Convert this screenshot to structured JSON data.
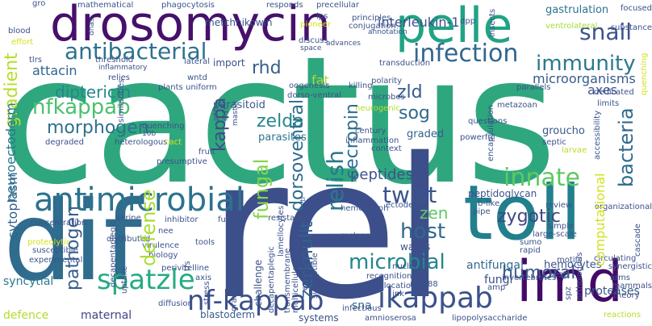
{
  "words": [
    {
      "text": "cactus",
      "color": "#2fa77e"
    },
    {
      "text": "rel",
      "color": "#3c4f8a"
    },
    {
      "text": "dif",
      "color": "#2f6c8e"
    },
    {
      "text": "toll",
      "color": "#22808d"
    },
    {
      "text": "drosomycin",
      "color": "#46106b"
    },
    {
      "text": "pelle",
      "color": "#21a385"
    },
    {
      "text": "imd",
      "color": "#440a68"
    },
    {
      "text": "antimicrobial",
      "color": "#2c728e"
    },
    {
      "text": "antibacterial",
      "color": "#2c728e"
    },
    {
      "text": "immunity",
      "color": "#2a788e"
    },
    {
      "text": "infection",
      "color": "#31668e"
    },
    {
      "text": "snail",
      "color": "#3b528b"
    },
    {
      "text": "innate",
      "color": "#5ec962"
    },
    {
      "text": "spatzle",
      "color": "#25ab82"
    },
    {
      "text": "nf-kappab",
      "color": "#3c4f8a"
    },
    {
      "text": "ikappab",
      "color": "#3b528b"
    },
    {
      "text": "microbial",
      "color": "#24868e"
    },
    {
      "text": "twist",
      "color": "#3a548c"
    },
    {
      "text": "relish",
      "color": "#2a788e"
    },
    {
      "text": "nfkappab",
      "color": "#4ac16d"
    },
    {
      "text": "morphogen",
      "color": "#2d718e"
    },
    {
      "text": "diptericin",
      "color": "#24878e"
    },
    {
      "text": "zelda",
      "color": "#24878e"
    },
    {
      "text": "kappa",
      "color": "#3e4c8a"
    },
    {
      "text": "rhd",
      "color": "#355f8d"
    },
    {
      "text": "zld",
      "color": "#375a8c"
    },
    {
      "text": "sog",
      "color": "#306a8e"
    },
    {
      "text": "humoral",
      "color": "#365c8d"
    },
    {
      "text": "pathogen",
      "color": "#355e8d"
    },
    {
      "text": "host",
      "color": "#31688e"
    },
    {
      "text": "bacteria",
      "color": "#306a8e"
    },
    {
      "text": "fungal",
      "color": "#84d44b"
    },
    {
      "text": "defense",
      "color": "#aadc32"
    },
    {
      "text": "dorsoventral",
      "color": "#2f6c8e"
    },
    {
      "text": "cecropin",
      "color": "#2e6e8e"
    },
    {
      "text": "peptides",
      "color": "#3b528b"
    },
    {
      "text": "zen",
      "color": "#5ec962"
    },
    {
      "text": "zygotic",
      "color": "#404688"
    },
    {
      "text": "interleukin-1",
      "color": "#3e4c8a"
    },
    {
      "text": "gradient",
      "color": "#b5de2b"
    },
    {
      "text": "attacin",
      "color": "#32648e"
    },
    {
      "text": "parasitoid",
      "color": "#38588c"
    },
    {
      "text": "parasites",
      "color": "#2a768e"
    },
    {
      "text": "graded",
      "color": "#355f8d"
    },
    {
      "text": "groucho",
      "color": "#38598c"
    },
    {
      "text": "axes",
      "color": "#3b528b"
    },
    {
      "text": "fat",
      "color": "#a8db34"
    },
    {
      "text": "microorganisms",
      "color": "#365c8d"
    },
    {
      "text": "gastrulation",
      "color": "#2c738e"
    },
    {
      "text": "zerknullt",
      "color": "#34618d"
    },
    {
      "text": "hemocytes",
      "color": "#3b528b"
    },
    {
      "text": "antifungal",
      "color": "#31688e"
    },
    {
      "text": "fungi",
      "color": "#3c4f8a"
    },
    {
      "text": "proteases",
      "color": "#38588c"
    },
    {
      "text": "sna",
      "color": "#306a8e"
    },
    {
      "text": "syncytial",
      "color": "#29798e"
    },
    {
      "text": "defence",
      "color": "#b2dd2d"
    },
    {
      "text": "maternal",
      "color": "#404688"
    },
    {
      "text": "blastoderm",
      "color": "#365c8d"
    },
    {
      "text": "cytoplasm",
      "color": "#34618d"
    },
    {
      "text": "neuroectoderm",
      "color": "#2a768e"
    },
    {
      "text": "computational",
      "color": "#d2e21b"
    },
    {
      "text": "metchnikowin",
      "color": "#3b528b"
    },
    {
      "text": "mathematical",
      "color": "#3b528b"
    },
    {
      "text": "phagocytosis",
      "color": "#3b528b"
    },
    {
      "text": "responds",
      "color": "#3b528b"
    },
    {
      "text": "precellular",
      "color": "#3b528b"
    },
    {
      "text": "conjugation",
      "color": "#3b528b"
    },
    {
      "text": "principles",
      "color": "#3b528b"
    },
    {
      "text": "lps",
      "color": "#3b528b"
    },
    {
      "text": "pioneer",
      "color": "#d8e219"
    },
    {
      "text": "annotation",
      "color": "#3b528b"
    },
    {
      "text": "dpp",
      "color": "#3b528b"
    },
    {
      "text": "insects",
      "color": "#3b528b"
    },
    {
      "text": "ventrolateral",
      "color": "#a5db36"
    },
    {
      "text": "substance",
      "color": "#3b528b"
    },
    {
      "text": "focused",
      "color": "#3b528b"
    },
    {
      "text": "threshold",
      "color": "#3b528b"
    },
    {
      "text": "tlrs",
      "color": "#3b528b"
    },
    {
      "text": "discuss",
      "color": "#3b528b"
    },
    {
      "text": "space",
      "color": "#3b528b"
    },
    {
      "text": "advances",
      "color": "#3b528b"
    },
    {
      "text": "transduction",
      "color": "#3b528b"
    },
    {
      "text": "lateral",
      "color": "#3b528b"
    },
    {
      "text": "import",
      "color": "#3b528b"
    },
    {
      "text": "effort",
      "color": "#d8e219"
    },
    {
      "text": "blood",
      "color": "#3b528b"
    },
    {
      "text": "gro",
      "color": "#3b528b"
    },
    {
      "text": "relies",
      "color": "#3b528b"
    },
    {
      "text": "plants",
      "color": "#3b528b"
    },
    {
      "text": "similarities",
      "color": "#3b528b"
    },
    {
      "text": "uniform",
      "color": "#3b528b"
    },
    {
      "text": "wntd",
      "color": "#3b528b"
    },
    {
      "text": "oogenesis",
      "color": "#3b528b"
    },
    {
      "text": "dorso-ventral",
      "color": "#3b528b"
    },
    {
      "text": "killing",
      "color": "#3b528b"
    },
    {
      "text": "polarity",
      "color": "#3b528b"
    },
    {
      "text": "microbes",
      "color": "#3b528b"
    },
    {
      "text": "neurogenic",
      "color": "#b8de29"
    },
    {
      "text": "metazoan",
      "color": "#3b528b"
    },
    {
      "text": "encapsulation",
      "color": "#3b528b"
    },
    {
      "text": "parallels",
      "color": "#3b528b"
    },
    {
      "text": "dedicated",
      "color": "#3b528b"
    },
    {
      "text": "limits",
      "color": "#3b528b"
    },
    {
      "text": "septic",
      "color": "#3b528b"
    },
    {
      "text": "larvae",
      "color": "#b8de29"
    },
    {
      "text": "questions",
      "color": "#3b528b"
    },
    {
      "text": "powerful",
      "color": "#3b528b"
    },
    {
      "text": "century",
      "color": "#3b528b"
    },
    {
      "text": "inflammation",
      "color": "#3b528b"
    },
    {
      "text": "context",
      "color": "#3b528b"
    },
    {
      "text": "accessibility",
      "color": "#3b528b"
    },
    {
      "text": "quenching",
      "color": "#d2e21b"
    },
    {
      "text": "degraded",
      "color": "#3b528b"
    },
    {
      "text": "heterologous",
      "color": "#3b528b"
    },
    {
      "text": "cact",
      "color": "#3b528b"
    },
    {
      "text": "fruit",
      "color": "#d8e219"
    },
    {
      "text": "presumptive",
      "color": "#3b528b"
    },
    {
      "text": "concentration",
      "color": "#3b528b"
    },
    {
      "text": "serine",
      "color": "#3b528b"
    },
    {
      "text": "inhibitor",
      "color": "#3b528b"
    },
    {
      "text": "nee",
      "color": "#3b528b"
    },
    {
      "text": "future",
      "color": "#3b528b"
    },
    {
      "text": "resistance",
      "color": "#3b528b"
    },
    {
      "text": "ectoderm",
      "color": "#3b528b"
    },
    {
      "text": "peptidoglycan",
      "color": "#3b528b"
    },
    {
      "text": "b-like",
      "color": "#3b528b"
    },
    {
      "text": "pipe",
      "color": "#3b528b"
    },
    {
      "text": "review",
      "color": "#3b528b"
    },
    {
      "text": "organizational",
      "color": "#3b528b"
    },
    {
      "text": "cascade",
      "color": "#3b528b"
    },
    {
      "text": "large-scale",
      "color": "#3b528b"
    },
    {
      "text": "simple",
      "color": "#3b528b"
    },
    {
      "text": "sumo",
      "color": "#3b528b"
    },
    {
      "text": "motifs",
      "color": "#3b528b"
    },
    {
      "text": "rapid",
      "color": "#3b528b"
    },
    {
      "text": "spz",
      "color": "#3b528b"
    },
    {
      "text": "orthologous",
      "color": "#3b528b"
    },
    {
      "text": "circulating",
      "color": "#3b528b"
    },
    {
      "text": "synergistic",
      "color": "#3b528b"
    },
    {
      "text": "pest",
      "color": "#3b528b"
    },
    {
      "text": "invertebrates",
      "color": "#3b528b"
    },
    {
      "text": "arms",
      "color": "#3b528b"
    },
    {
      "text": "mammals",
      "color": "#3b528b"
    },
    {
      "text": "theory",
      "color": "#3b528b"
    },
    {
      "text": "reactions",
      "color": "#3b528b"
    },
    {
      "text": "distributed",
      "color": "#b5de2b"
    },
    {
      "text": "virulence",
      "color": "#3b528b"
    },
    {
      "text": "biology",
      "color": "#3b528b"
    },
    {
      "text": "tools",
      "color": "#3b528b"
    },
    {
      "text": "tfs",
      "color": "#3b528b"
    },
    {
      "text": "stress",
      "color": "#3b528b"
    },
    {
      "text": "perivitelline",
      "color": "#3b528b"
    },
    {
      "text": "diffusion",
      "color": "#3b528b"
    },
    {
      "text": "challenge",
      "color": "#3b528b"
    },
    {
      "text": "lamellocytes",
      "color": "#3b528b"
    },
    {
      "text": "wasps",
      "color": "#3b528b"
    },
    {
      "text": "melanotic",
      "color": "#3b528b"
    },
    {
      "text": "defend",
      "color": "#3b528b"
    },
    {
      "text": "nuclei",
      "color": "#3b528b"
    },
    {
      "text": "recognition",
      "color": "#3b528b"
    },
    {
      "text": "translocation",
      "color": "#3b528b"
    },
    {
      "text": "myd88",
      "color": "#3b528b"
    },
    {
      "text": "jnk",
      "color": "#3b528b"
    },
    {
      "text": "systems",
      "color": "#3b528b"
    },
    {
      "text": "infectious",
      "color": "#3b528b"
    },
    {
      "text": "amnioserosa",
      "color": "#3b528b"
    },
    {
      "text": "lipopolysaccharide",
      "color": "#3b528b"
    },
    {
      "text": "hemolymph",
      "color": "#3b528b"
    },
    {
      "text": "gram-negative",
      "color": "#3b528b"
    },
    {
      "text": "transmembrane",
      "color": "#3b528b"
    },
    {
      "text": "multicellular",
      "color": "#3b528b"
    },
    {
      "text": "epigenetic",
      "color": "#3b528b"
    },
    {
      "text": "experimental",
      "color": "#3b528b"
    },
    {
      "text": "susceptible",
      "color": "#3b528b"
    },
    {
      "text": "decapentaplegic",
      "color": "#3b528b"
    },
    {
      "text": "uptake",
      "color": "#3b528b"
    },
    {
      "text": "axis",
      "color": "#3b528b"
    },
    {
      "text": "proteolytic",
      "color": "#3b528b"
    },
    {
      "text": "inflammatory",
      "color": "#3b528b"
    },
    {
      "text": "dnas",
      "color": "#3b528b"
    },
    {
      "text": "master",
      "color": "#d2e21b"
    },
    {
      "text": "10b",
      "color": "#3b528b"
    },
    {
      "text": "p60",
      "color": "#3b528b"
    },
    {
      "text": "il-1r",
      "color": "#3b528b"
    },
    {
      "text": "amp",
      "color": "#3b528b"
    },
    {
      "text": "tl",
      "color": "#3b528b"
    },
    {
      "text": "z2",
      "color": "#3b528b"
    },
    {
      "text": "dv",
      "color": "#3b528b"
    },
    {
      "text": "rsk",
      "color": "#3b528b"
    }
  ]
}
